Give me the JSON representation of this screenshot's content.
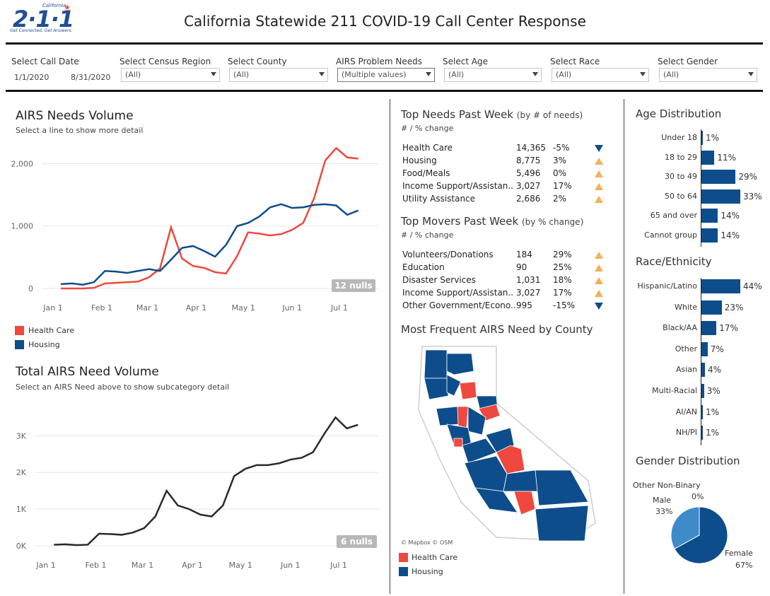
{
  "logo": {
    "main": "2·1·1",
    "small": "California",
    "tagline": "Get Connected. Get Answers."
  },
  "title": "California Statewide 211 COVID-19 Call Center Response",
  "filters": {
    "call_date": {
      "label": "Select Call Date",
      "start": "1/1/2020",
      "end": "8/31/2020"
    },
    "census_region": {
      "label": "Select Census Region",
      "value": "(All)"
    },
    "county": {
      "label": "Select County",
      "value": "(All)"
    },
    "problem_needs": {
      "label": "AIRS Problem Needs",
      "value": "(Multiple values)"
    },
    "age": {
      "label": "Select Age",
      "value": "(All)"
    },
    "race": {
      "label": "Select Race",
      "value": "(All)"
    },
    "gender": {
      "label": "Select Gender",
      "value": "(All)"
    }
  },
  "needs_volume": {
    "title": "AIRS Needs Volume",
    "subtitle": "Select a line to show more detail",
    "nulls": "12 nulls",
    "legend": [
      {
        "label": "Health Care",
        "color": "#f0483e"
      },
      {
        "label": "Housing",
        "color": "#0e4d8b"
      }
    ],
    "y_ticks": [
      "2,000",
      "1,000",
      "0"
    ],
    "x_ticks": [
      "Jan 1",
      "Feb 1",
      "Mar 1",
      "Apr 1",
      "May 1",
      "Jun 1",
      "Jul 1"
    ]
  },
  "total_volume": {
    "title": "Total AIRS Need Volume",
    "subtitle": "Select an AIRS Need above to show subcategory detail",
    "nulls": "6 nulls",
    "y_ticks": [
      "3K",
      "2K",
      "1K",
      "0K"
    ],
    "x_ticks": [
      "Jan 1",
      "Feb 1",
      "Mar 1",
      "Apr 1",
      "May 1",
      "Jun 1",
      "Jul 1"
    ]
  },
  "top_needs": {
    "title": "Top Needs Past Week",
    "title_small": "(by # of needs)",
    "subtitle": "# / % change",
    "rows": [
      {
        "name": "Health Care",
        "count": "14,365",
        "pct": "-5%",
        "dir": "down"
      },
      {
        "name": "Housing",
        "count": "8,775",
        "pct": "3%",
        "dir": "up"
      },
      {
        "name": "Food/Meals",
        "count": "5,496",
        "pct": "0%",
        "dir": "up"
      },
      {
        "name": "Income Support/Assistan..",
        "count": "3,027",
        "pct": "17%",
        "dir": "up"
      },
      {
        "name": "Utility Assistance",
        "count": "2,686",
        "pct": "2%",
        "dir": "up"
      }
    ]
  },
  "top_movers": {
    "title": "Top Movers Past Week",
    "title_small": "(by % change)",
    "subtitle": "# / % change",
    "rows": [
      {
        "name": "Volunteers/Donations",
        "count": "184",
        "pct": "29%",
        "dir": "up"
      },
      {
        "name": "Education",
        "count": "90",
        "pct": "25%",
        "dir": "up"
      },
      {
        "name": "Disaster Services",
        "count": "1,031",
        "pct": "18%",
        "dir": "up"
      },
      {
        "name": "Income Support/Assistan..",
        "count": "3,027",
        "pct": "17%",
        "dir": "up"
      },
      {
        "name": "Other Government/Econo..",
        "count": "995",
        "pct": "-15%",
        "dir": "down"
      }
    ]
  },
  "map": {
    "title": "Most Frequent AIRS Need by County",
    "attribution": "© Mapbox © OSM",
    "legend": [
      {
        "label": "Health Care",
        "color": "#f0483e"
      },
      {
        "label": "Housing",
        "color": "#0e4d8b"
      }
    ]
  },
  "age": {
    "title": "Age Distribution",
    "rows": [
      {
        "label": "Under 18",
        "pct": "1%",
        "value": 1
      },
      {
        "label": "18 to 29",
        "pct": "11%",
        "value": 11
      },
      {
        "label": "30 to 49",
        "pct": "29%",
        "value": 29
      },
      {
        "label": "50 to 64",
        "pct": "33%",
        "value": 33
      },
      {
        "label": "65 and over",
        "pct": "14%",
        "value": 14
      },
      {
        "label": "Cannot group",
        "pct": "14%",
        "value": 14
      }
    ]
  },
  "race": {
    "title": "Race/Ethnicity",
    "rows": [
      {
        "label": "Hispanic/Latino",
        "pct": "44%",
        "value": 44
      },
      {
        "label": "White",
        "pct": "23%",
        "value": 23
      },
      {
        "label": "Black/AA",
        "pct": "17%",
        "value": 17
      },
      {
        "label": "Other",
        "pct": "7%",
        "value": 7
      },
      {
        "label": "Asian",
        "pct": "4%",
        "value": 4
      },
      {
        "label": "Multi-Racial",
        "pct": "3%",
        "value": 3
      },
      {
        "label": "AI/AN",
        "pct": "1%",
        "value": 1
      },
      {
        "label": "NH/PI",
        "pct": "1%",
        "value": 1
      }
    ]
  },
  "gender": {
    "title": "Gender Distribution",
    "slices": [
      {
        "label": "Female",
        "pct": "67%",
        "value": 67,
        "color": "#0e4d8b"
      },
      {
        "label": "Male",
        "pct": "33%",
        "value": 33,
        "color": "#3d8bc9"
      },
      {
        "label": "Other Non-Binary",
        "pct": "0%",
        "value": 0,
        "color": "#9ecae1"
      }
    ]
  },
  "chart_data": [
    {
      "type": "line",
      "title": "AIRS Needs Volume",
      "x": [
        "2020-01-06",
        "2020-01-13",
        "2020-01-20",
        "2020-01-27",
        "2020-02-03",
        "2020-02-10",
        "2020-02-17",
        "2020-02-24",
        "2020-03-02",
        "2020-03-09",
        "2020-03-16",
        "2020-03-23",
        "2020-03-30",
        "2020-04-06",
        "2020-04-13",
        "2020-04-20",
        "2020-04-27",
        "2020-05-04",
        "2020-05-11",
        "2020-05-18",
        "2020-05-25",
        "2020-06-01",
        "2020-06-08",
        "2020-06-15",
        "2020-06-22",
        "2020-06-29",
        "2020-07-06",
        "2020-07-13"
      ],
      "series": [
        {
          "name": "Health Care",
          "values": [
            0,
            0,
            0,
            10,
            80,
            90,
            100,
            110,
            180,
            320,
            980,
            480,
            360,
            330,
            260,
            240,
            520,
            900,
            880,
            850,
            870,
            940,
            1050,
            1450,
            2050,
            2250,
            2100,
            2080
          ]
        },
        {
          "name": "Housing",
          "values": [
            70,
            80,
            60,
            100,
            280,
            270,
            250,
            280,
            310,
            280,
            460,
            650,
            680,
            600,
            510,
            700,
            1000,
            1050,
            1150,
            1300,
            1350,
            1290,
            1300,
            1340,
            1350,
            1330,
            1180,
            1250
          ]
        }
      ],
      "ylim": [
        0,
        2300
      ]
    },
    {
      "type": "line",
      "title": "Total AIRS Need Volume",
      "x": [
        "2020-01-06",
        "2020-01-13",
        "2020-01-20",
        "2020-01-27",
        "2020-02-03",
        "2020-02-10",
        "2020-02-17",
        "2020-02-24",
        "2020-03-02",
        "2020-03-09",
        "2020-03-16",
        "2020-03-23",
        "2020-03-30",
        "2020-04-06",
        "2020-04-13",
        "2020-04-20",
        "2020-04-27",
        "2020-05-04",
        "2020-05-11",
        "2020-05-18",
        "2020-05-25",
        "2020-06-01",
        "2020-06-08",
        "2020-06-15",
        "2020-06-22",
        "2020-06-29",
        "2020-07-06",
        "2020-07-13"
      ],
      "series": [
        {
          "name": "Total",
          "values": [
            30,
            40,
            20,
            30,
            330,
            320,
            300,
            360,
            480,
            800,
            1500,
            1100,
            1000,
            850,
            800,
            1100,
            1900,
            2100,
            2200,
            2200,
            2250,
            2350,
            2400,
            2550,
            3050,
            3500,
            3200,
            3300
          ]
        }
      ],
      "ylim": [
        0,
        3700
      ]
    },
    {
      "type": "bar",
      "title": "Age Distribution",
      "categories": [
        "Under 18",
        "18 to 29",
        "30 to 49",
        "50 to 64",
        "65 and over",
        "Cannot group"
      ],
      "values": [
        1,
        11,
        29,
        33,
        14,
        14
      ]
    },
    {
      "type": "bar",
      "title": "Race/Ethnicity",
      "categories": [
        "Hispanic/Latino",
        "White",
        "Black/AA",
        "Other",
        "Asian",
        "Multi-Racial",
        "AI/AN",
        "NH/PI"
      ],
      "values": [
        44,
        23,
        17,
        7,
        4,
        3,
        1,
        1
      ]
    },
    {
      "type": "pie",
      "title": "Gender Distribution",
      "categories": [
        "Female",
        "Male",
        "Other Non-Binary"
      ],
      "values": [
        67,
        33,
        0
      ]
    }
  ]
}
